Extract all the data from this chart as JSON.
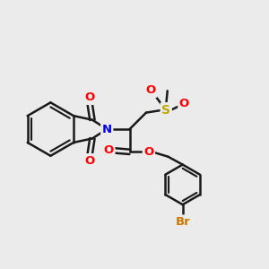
{
  "background_color": "#ebebeb",
  "bond_color": "#1a1a1a",
  "bond_width": 1.8,
  "atom_colors": {
    "O": "#ff0000",
    "N": "#0000ee",
    "S": "#bbaa00",
    "Br": "#cc7700",
    "C": "#1a1a1a"
  },
  "font_size_atom": 9.5
}
